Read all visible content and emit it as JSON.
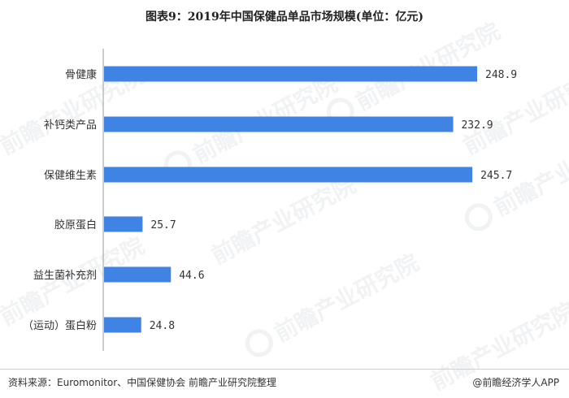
{
  "title": "图表9：2019年中国保健品单品市场规模(单位：亿元)",
  "footer": {
    "source": "资料来源：Euromonitor、中国保健协会 前瞻产业研究院整理",
    "brand": "@前瞻经济学人APP"
  },
  "watermark_text": "前瞻产业研究院",
  "colors": {
    "bar": "#3f83e4",
    "axis": "#9a9a9a"
  },
  "chart_data": {
    "type": "bar",
    "orientation": "horizontal",
    "categories": [
      "骨健康",
      "补钙类产品",
      "保健维生素",
      "胶原蛋白",
      "益生菌补充剂",
      "（运动）蛋白粉"
    ],
    "value_labels": [
      "248.9",
      "232.9",
      "245.7",
      "25.7",
      "44.6",
      "24.8"
    ],
    "values": [
      248.9,
      232.9,
      245.7,
      25.7,
      44.6,
      24.8
    ],
    "title": "图表9：2019年中国保健品单品市场规模(单位：亿元)",
    "xlabel": "",
    "ylabel": "",
    "xlim": [
      0,
      260
    ],
    "grid": false,
    "legend": "none"
  }
}
